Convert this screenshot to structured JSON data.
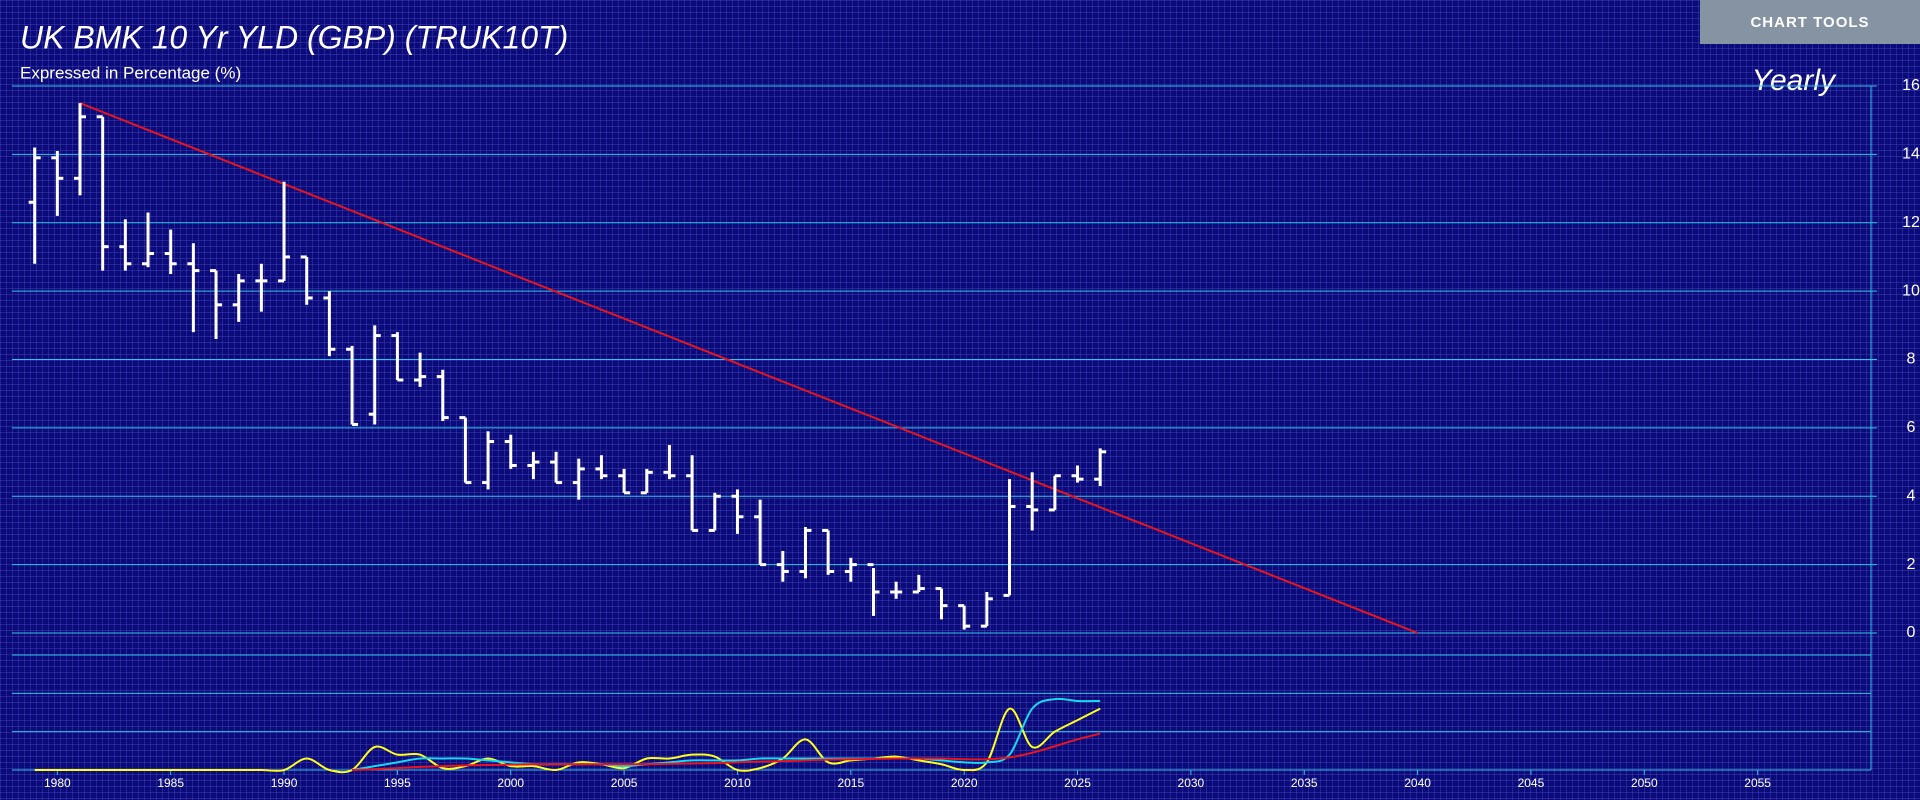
{
  "toolbar": {
    "button": "CHART TOOLS"
  },
  "chart_data": [
    {
      "type": "ohlc",
      "title": "UK BMK 10 Yr YLD (GBP) (TRUK10T)",
      "subtitle": "Expressed in Percentage (%)",
      "period_label": "Yearly",
      "color": "#ffffff",
      "x": [
        1979,
        1980,
        1981,
        1982,
        1983,
        1984,
        1985,
        1986,
        1987,
        1988,
        1989,
        1990,
        1991,
        1992,
        1993,
        1994,
        1995,
        1996,
        1997,
        1998,
        1999,
        2000,
        2001,
        2002,
        2003,
        2004,
        2005,
        2006,
        2007,
        2008,
        2009,
        2010,
        2011,
        2012,
        2013,
        2014,
        2015,
        2016,
        2017,
        2018,
        2019,
        2020,
        2021,
        2022,
        2023,
        2024,
        2025,
        2026
      ],
      "open": [
        12.6,
        13.9,
        13.3,
        15.1,
        11.3,
        10.8,
        11.1,
        10.8,
        10.6,
        9.6,
        10.3,
        10.3,
        11.0,
        9.8,
        8.3,
        6.4,
        8.7,
        7.4,
        7.5,
        6.3,
        4.4,
        5.6,
        4.9,
        5.0,
        4.4,
        4.8,
        4.6,
        4.1,
        4.7,
        4.6,
        3.0,
        4.0,
        3.4,
        2.0,
        1.8,
        3.0,
        1.8,
        2.0,
        1.2,
        1.2,
        1.3,
        0.8,
        0.2,
        1.1,
        3.7,
        3.6,
        4.6,
        4.5
      ],
      "high": [
        14.2,
        14.1,
        15.5,
        15.1,
        12.1,
        12.3,
        11.8,
        11.4,
        10.6,
        10.5,
        10.8,
        13.2,
        11.0,
        10.0,
        8.4,
        9.0,
        8.8,
        8.2,
        7.7,
        6.3,
        5.9,
        5.8,
        5.3,
        5.3,
        5.1,
        5.2,
        4.8,
        4.8,
        5.5,
        5.2,
        4.1,
        4.2,
        3.9,
        2.4,
        3.1,
        3.0,
        2.2,
        1.9,
        1.5,
        1.7,
        1.3,
        0.8,
        1.2,
        4.5,
        4.7,
        4.6,
        4.9,
        5.4
      ],
      "low": [
        10.8,
        12.2,
        12.8,
        10.6,
        10.6,
        10.7,
        10.5,
        8.8,
        8.6,
        9.1,
        9.4,
        10.3,
        9.6,
        8.1,
        6.1,
        6.1,
        7.4,
        7.2,
        6.2,
        4.4,
        4.2,
        4.8,
        4.5,
        4.4,
        3.9,
        4.5,
        4.1,
        4.1,
        4.5,
        3.0,
        3.0,
        2.9,
        2.0,
        1.5,
        1.6,
        1.7,
        1.5,
        0.5,
        1.0,
        1.2,
        0.4,
        0.1,
        0.2,
        1.1,
        3.0,
        3.6,
        4.4,
        4.3
      ],
      "close": [
        13.9,
        13.3,
        15.1,
        11.3,
        10.8,
        11.1,
        10.8,
        10.6,
        9.6,
        10.3,
        10.3,
        11.0,
        9.8,
        8.3,
        6.1,
        8.7,
        7.4,
        7.5,
        6.3,
        4.4,
        5.6,
        4.9,
        5.0,
        4.4,
        4.8,
        4.6,
        4.1,
        4.7,
        4.6,
        3.0,
        4.0,
        3.4,
        2.0,
        1.8,
        3.0,
        1.8,
        2.0,
        1.2,
        1.2,
        1.3,
        0.8,
        0.2,
        1.0,
        3.7,
        3.6,
        4.6,
        4.5,
        5.3
      ],
      "trendline": {
        "x": [
          1981,
          2040
        ],
        "values": [
          15.5,
          0
        ],
        "color": "#e8141e"
      },
      "xlim": [
        1978,
        2060
      ],
      "ylim": [
        0,
        16
      ],
      "yticks": [
        0,
        2,
        4,
        6,
        8,
        10,
        12,
        14,
        16
      ],
      "grid": true
    },
    {
      "type": "line",
      "x": [
        1979,
        1980,
        1981,
        1982,
        1983,
        1984,
        1985,
        1986,
        1987,
        1988,
        1989,
        1990,
        1991,
        1992,
        1993,
        1994,
        1995,
        1996,
        1997,
        1998,
        1999,
        2000,
        2001,
        2002,
        2003,
        2004,
        2005,
        2006,
        2007,
        2008,
        2009,
        2010,
        2011,
        2012,
        2013,
        2014,
        2015,
        2016,
        2017,
        2018,
        2019,
        2020,
        2021,
        2022,
        2023,
        2024,
        2025,
        2026
      ],
      "series": [
        {
          "color": "#ffff1e",
          "values": [
            0,
            0,
            0,
            0,
            0,
            0,
            0,
            0,
            0,
            0,
            0,
            0,
            0.3,
            0,
            0,
            0.6,
            0.4,
            0.4,
            0.05,
            0.1,
            0.3,
            0.1,
            0.1,
            0,
            0.2,
            0.15,
            0.05,
            0.3,
            0.3,
            0.4,
            0.35,
            0,
            0.05,
            0.3,
            0.8,
            0.2,
            0.25,
            0.3,
            0.35,
            0.25,
            0.15,
            0,
            0.2,
            1.6,
            0.6,
            1.0,
            1.3,
            1.6
          ]
        },
        {
          "color": "#18d8f0",
          "values": [
            null,
            null,
            null,
            null,
            null,
            null,
            null,
            null,
            null,
            null,
            null,
            null,
            null,
            null,
            0,
            0.1,
            0.2,
            0.3,
            0.3,
            0.3,
            0.25,
            0.2,
            0.15,
            0.15,
            0.15,
            0.15,
            0.1,
            0.15,
            0.2,
            0.25,
            0.25,
            0.25,
            0.3,
            0.3,
            0.3,
            0.3,
            0.3,
            0.3,
            0.3,
            0.3,
            0.25,
            0.2,
            0.2,
            0.4,
            1.6,
            1.85,
            1.8,
            1.8
          ]
        },
        {
          "color": "#e8141e",
          "values": [
            null,
            null,
            null,
            null,
            null,
            null,
            null,
            null,
            null,
            null,
            null,
            null,
            null,
            null,
            0,
            0.02,
            0.05,
            0.08,
            0.1,
            0.12,
            0.13,
            0.14,
            0.15,
            0.15,
            0.15,
            0.15,
            0.15,
            0.15,
            0.16,
            0.17,
            0.18,
            0.2,
            0.22,
            0.23,
            0.25,
            0.27,
            0.28,
            0.29,
            0.3,
            0.3,
            0.3,
            0.28,
            0.28,
            0.33,
            0.45,
            0.62,
            0.8,
            0.95
          ]
        }
      ],
      "xlim": [
        1978,
        2060
      ],
      "xticks": [
        1980,
        1985,
        1990,
        1995,
        2000,
        2005,
        2010,
        2015,
        2020,
        2025,
        2030,
        2035,
        2040,
        2045,
        2050,
        2055
      ],
      "ylim": [
        0,
        3
      ],
      "yticks": [
        0,
        1,
        2,
        3
      ],
      "grid": true,
      "show_ytick_labels": false
    }
  ]
}
